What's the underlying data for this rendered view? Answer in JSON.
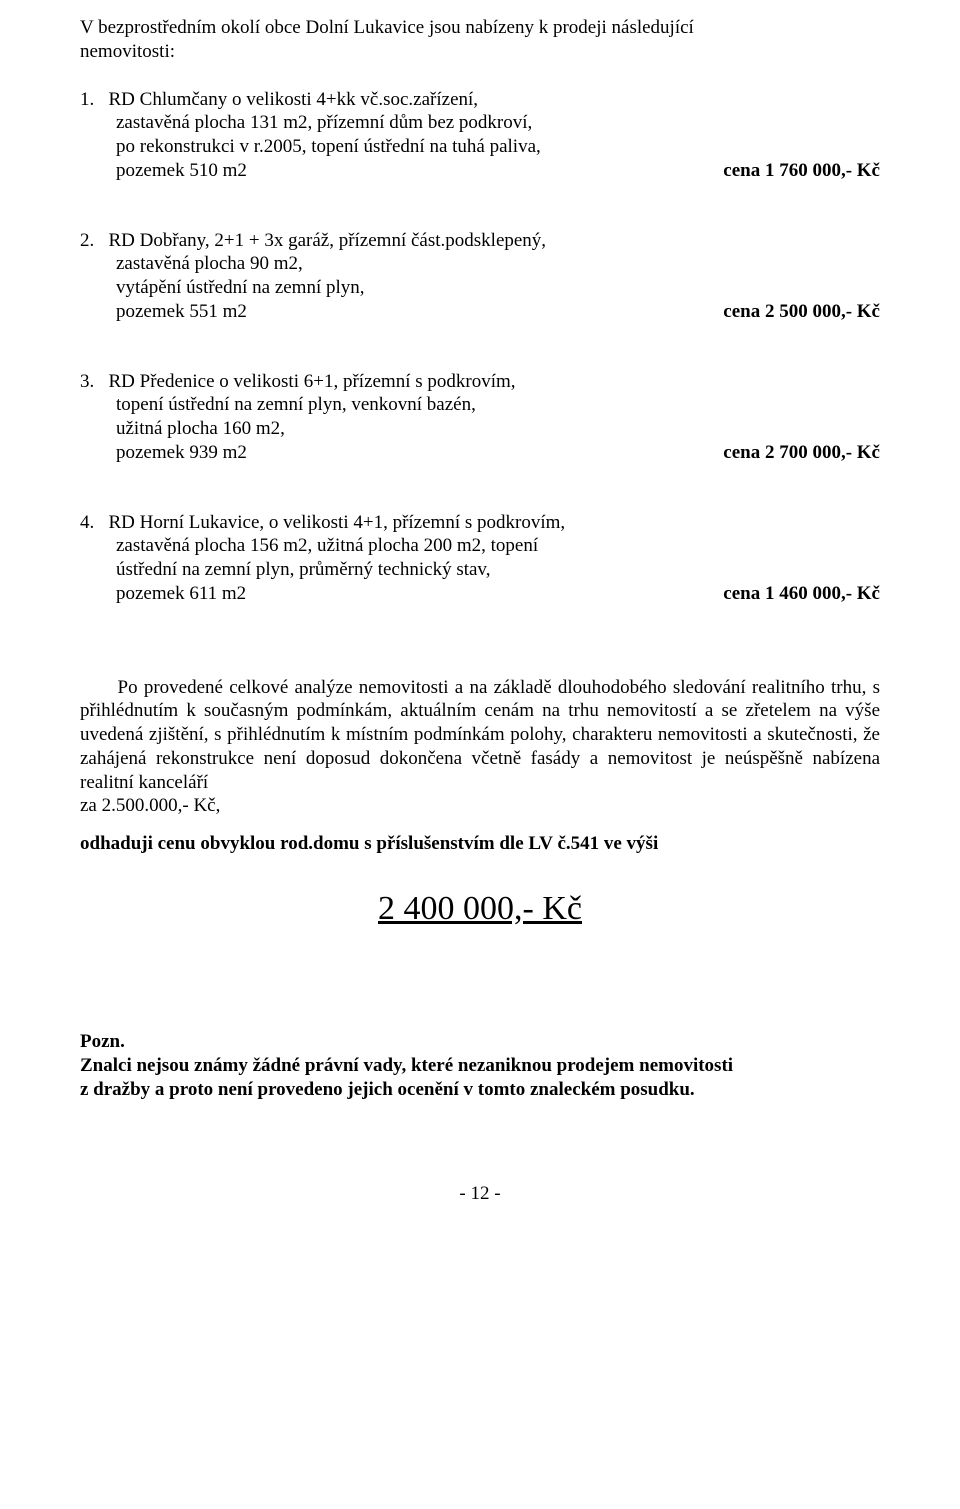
{
  "intro": {
    "line1": "V  bezprostředním okolí obce Dolní Lukavice  jsou nabízeny k prodeji následující",
    "line2": "nemovitosti:"
  },
  "items": [
    {
      "num": "1.",
      "l1": "RD Chlumčany o velikosti 4+kk vč.soc.zařízení,",
      "l2": "zastavěná plocha 131 m2, přízemní dům bez podkroví,",
      "l3": "po rekonstrukci v r.2005, topení ústřední na tuhá paliva,",
      "last_left": "pozemek 510 m2",
      "price": "cena   1 760 000,- Kč"
    },
    {
      "num": "2.",
      "l1": "RD Dobřany,  2+1 + 3x garáž,  přízemní část.podsklepený,",
      "l2": "zastavěná plocha 90 m2,",
      "l3": "vytápění ústřední na zemní plyn,",
      "last_left": "pozemek 551 m2",
      "price": "cena   2 500 000,- Kč"
    },
    {
      "num": "3.",
      "l1": "RD Předenice o velikosti 6+1, přízemní s podkrovím,",
      "l2": "topení ústřední na zemní plyn, venkovní bazén,",
      "l3": "užitná plocha 160 m2,",
      "last_left": "pozemek 939 m2",
      "price": "cena   2 700 000,- Kč"
    },
    {
      "num": "4.",
      "l1": "RD Horní Lukavice, o velikosti  4+1, přízemní s podkrovím,",
      "l2": "zastavěná plocha 156 m2, užitná plocha 200 m2, topení",
      "l3": "ústřední na zemní plyn, průměrný technický stav,",
      "last_left": "pozemek 611 m2",
      "price": "cena    1 460 000,- Kč"
    }
  ],
  "analysis": {
    "p1": "Po provedené celkové analýze nemovitosti a na základě dlouhodobého sledování realitního trhu, s přihlédnutím k současným podmínkám, aktuálním cenám na trhu nemovitostí a se zřetelem na výše uvedená zjištění, s přihlédnutím k místním podmínkám polohy, charakteru nemovitosti a skutečnosti, že zahájená rekonstrukce není doposud dokončena včetně fasády a nemovitost je neúspěšně nabízena realitní kanceláří",
    "p2": "za 2.500.000,- Kč,"
  },
  "estimate_label": "odhaduji cenu obvyklou rod.domu s příslušenstvím dle LV č.541 ve výši",
  "big_price": "2 400 000,- Kč",
  "note": {
    "title": "Pozn.",
    "l1": " Znalci nejsou známy žádné právní vady, které nezaniknou prodejem nemovitosti",
    "l2": "z dražby a proto není provedeno jejich ocenění v tomto znaleckém posudku."
  },
  "page_number": "- 12 -"
}
